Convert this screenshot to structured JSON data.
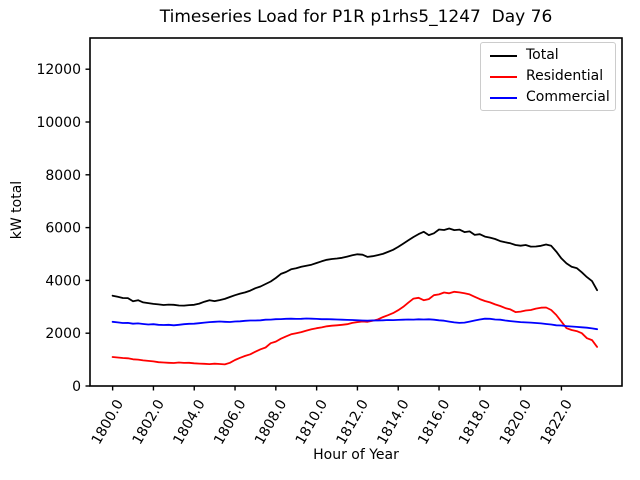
{
  "title": "Timeseries Load for P1R p1rhs5_1247  Day 76",
  "legend": {
    "items": [
      {
        "label": "Total",
        "color": "#000000"
      },
      {
        "label": "Residential",
        "color": "#ff0000"
      },
      {
        "label": "Commercial",
        "color": "#0000ff"
      }
    ]
  },
  "chart_data": {
    "type": "line",
    "title": "Timeseries Load for P1R p1rhs5_1247  Day 76",
    "xlabel": "Hour of Year",
    "ylabel": "kW total",
    "xlim": [
      1798.89,
      1824.97
    ],
    "ylim": [
      0,
      13182
    ],
    "grid": false,
    "legend_position": "upper right",
    "xticks": [
      1800,
      1802,
      1804,
      1806,
      1808,
      1810,
      1812,
      1814,
      1816,
      1818,
      1820,
      1822
    ],
    "xticklabels": [
      "1800.0",
      "1802.0",
      "1804.0",
      "1806.0",
      "1808.0",
      "1810.0",
      "1812.0",
      "1814.0",
      "1816.0",
      "1818.0",
      "1820.0",
      "1822.0"
    ],
    "xticklabel_rotation": 60,
    "yticks": [
      0,
      2000,
      4000,
      6000,
      8000,
      10000,
      12000
    ],
    "yticklabels": [
      "0",
      "2000",
      "4000",
      "6000",
      "8000",
      "10000",
      "12000"
    ],
    "x_start": 1800.0,
    "x_step": 0.25,
    "x": [
      1800.0,
      1800.25,
      1800.5,
      1800.75,
      1801.0,
      1801.25,
      1801.5,
      1801.75,
      1802.0,
      1802.25,
      1802.5,
      1802.75,
      1803.0,
      1803.25,
      1803.5,
      1803.75,
      1804.0,
      1804.25,
      1804.5,
      1804.75,
      1805.0,
      1805.25,
      1805.5,
      1805.75,
      1806.0,
      1806.25,
      1806.5,
      1806.75,
      1807.0,
      1807.25,
      1807.5,
      1807.75,
      1808.0,
      1808.25,
      1808.5,
      1808.75,
      1809.0,
      1809.25,
      1809.5,
      1809.75,
      1810.0,
      1810.25,
      1810.5,
      1810.75,
      1811.0,
      1811.25,
      1811.5,
      1811.75,
      1812.0,
      1812.25,
      1812.5,
      1812.75,
      1813.0,
      1813.25,
      1813.5,
      1813.75,
      1814.0,
      1814.25,
      1814.5,
      1814.75,
      1815.0,
      1815.25,
      1815.5,
      1815.75,
      1816.0,
      1816.25,
      1816.5,
      1816.75,
      1817.0,
      1817.25,
      1817.5,
      1817.75,
      1818.0,
      1818.25,
      1818.5,
      1818.75,
      1819.0,
      1819.25,
      1819.5,
      1819.75,
      1820.0,
      1820.25,
      1820.5,
      1820.75,
      1821.0,
      1821.25,
      1821.5,
      1821.75,
      1822.0,
      1822.25,
      1822.5,
      1822.75,
      1823.0,
      1823.25,
      1823.5,
      1823.75
    ],
    "series": [
      {
        "name": "Total",
        "color": "#000000",
        "values": [
          3420,
          3380,
          3335,
          3330,
          3210,
          3250,
          3165,
          3140,
          3110,
          3090,
          3070,
          3085,
          3075,
          3050,
          3045,
          3065,
          3075,
          3120,
          3195,
          3250,
          3215,
          3255,
          3300,
          3370,
          3440,
          3500,
          3545,
          3615,
          3705,
          3770,
          3865,
          3960,
          4090,
          4245,
          4320,
          4420,
          4460,
          4515,
          4555,
          4595,
          4660,
          4725,
          4780,
          4810,
          4830,
          4855,
          4900,
          4950,
          4990,
          4975,
          4890,
          4915,
          4960,
          5005,
          5080,
          5160,
          5270,
          5395,
          5520,
          5645,
          5755,
          5840,
          5715,
          5785,
          5930,
          5910,
          5965,
          5905,
          5925,
          5830,
          5855,
          5725,
          5750,
          5660,
          5620,
          5570,
          5490,
          5445,
          5405,
          5340,
          5315,
          5340,
          5280,
          5285,
          5310,
          5360,
          5310,
          5090,
          4835,
          4645,
          4515,
          4465,
          4305,
          4125,
          3975,
          3630
        ]
      },
      {
        "name": "Residential",
        "color": "#ff0000",
        "values": [
          1100,
          1080,
          1060,
          1050,
          1010,
          1000,
          970,
          950,
          930,
          900,
          890,
          880,
          870,
          890,
          875,
          880,
          860,
          850,
          840,
          830,
          845,
          835,
          820,
          880,
          985,
          1070,
          1140,
          1200,
          1300,
          1390,
          1460,
          1620,
          1680,
          1790,
          1880,
          1960,
          2000,
          2040,
          2100,
          2150,
          2190,
          2220,
          2260,
          2285,
          2300,
          2320,
          2340,
          2390,
          2420,
          2445,
          2430,
          2470,
          2520,
          2610,
          2680,
          2760,
          2870,
          3000,
          3160,
          3310,
          3340,
          3250,
          3290,
          3440,
          3470,
          3540,
          3510,
          3570,
          3545,
          3510,
          3470,
          3380,
          3290,
          3220,
          3165,
          3090,
          3030,
          2950,
          2900,
          2800,
          2820,
          2860,
          2880,
          2930,
          2965,
          2975,
          2880,
          2690,
          2440,
          2190,
          2120,
          2080,
          2000,
          1810,
          1740,
          1480
        ]
      },
      {
        "name": "Commercial",
        "color": "#0000ff",
        "values": [
          2430,
          2410,
          2385,
          2390,
          2360,
          2370,
          2350,
          2330,
          2340,
          2320,
          2310,
          2320,
          2300,
          2320,
          2340,
          2355,
          2360,
          2380,
          2400,
          2420,
          2430,
          2445,
          2430,
          2425,
          2445,
          2450,
          2470,
          2480,
          2480,
          2490,
          2510,
          2515,
          2530,
          2535,
          2545,
          2550,
          2540,
          2545,
          2555,
          2550,
          2540,
          2530,
          2535,
          2525,
          2520,
          2510,
          2505,
          2500,
          2490,
          2480,
          2475,
          2485,
          2480,
          2490,
          2500,
          2495,
          2505,
          2510,
          2520,
          2515,
          2525,
          2520,
          2525,
          2510,
          2490,
          2475,
          2440,
          2410,
          2390,
          2400,
          2440,
          2480,
          2520,
          2550,
          2545,
          2520,
          2510,
          2480,
          2460,
          2440,
          2420,
          2410,
          2400,
          2385,
          2370,
          2350,
          2330,
          2300,
          2290,
          2270,
          2255,
          2240,
          2225,
          2210,
          2180,
          2150
        ]
      }
    ]
  }
}
